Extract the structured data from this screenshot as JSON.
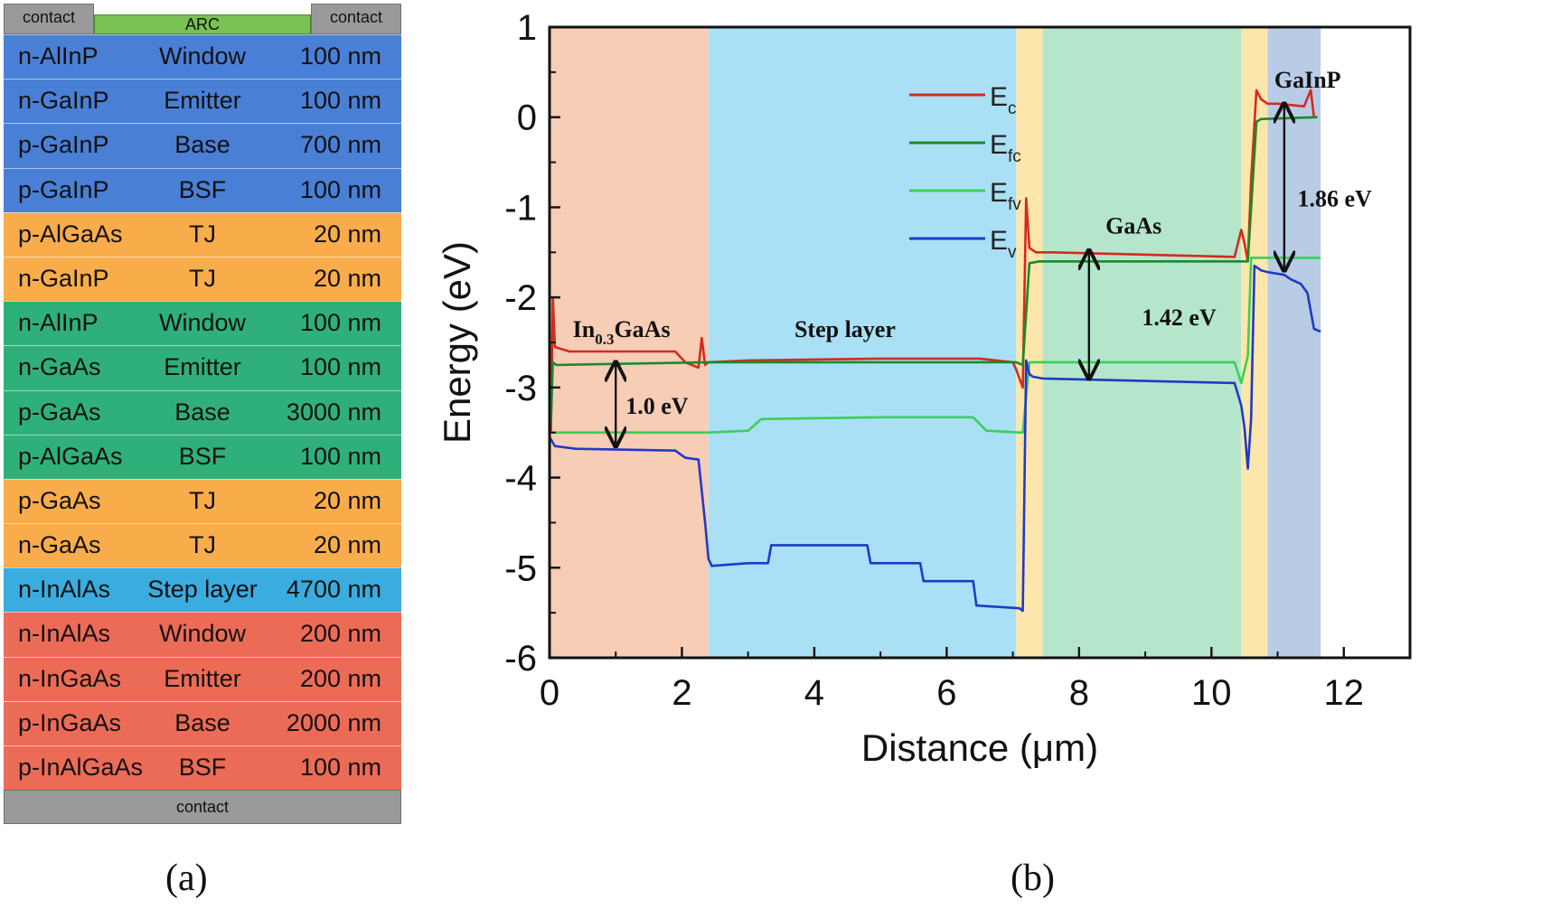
{
  "figure_a": {
    "caption": "(a)",
    "top_contact_left": "contact",
    "top_arc": "ARC",
    "top_contact_right": "contact",
    "bottom_contact": "contact",
    "layers": [
      {
        "material": "n-AlInP",
        "function": "Window",
        "thickness": "100 nm",
        "color": "#4a7fd6"
      },
      {
        "material": "n-GaInP",
        "function": "Emitter",
        "thickness": "100 nm",
        "color": "#4a7fd6"
      },
      {
        "material": "p-GaInP",
        "function": "Base",
        "thickness": "700 nm",
        "color": "#4a7fd6"
      },
      {
        "material": "p-GaInP",
        "function": "BSF",
        "thickness": "100 nm",
        "color": "#4a7fd6"
      },
      {
        "material": "p-AlGaAs",
        "function": "TJ",
        "thickness": "20 nm",
        "color": "#f9ac4a"
      },
      {
        "material": "n-GaInP",
        "function": "TJ",
        "thickness": "20 nm",
        "color": "#f9ac4a"
      },
      {
        "material": "n-AlInP",
        "function": "Window",
        "thickness": "100 nm",
        "color": "#2fb07a"
      },
      {
        "material": "n-GaAs",
        "function": "Emitter",
        "thickness": "100 nm",
        "color": "#2fb07a"
      },
      {
        "material": "p-GaAs",
        "function": "Base",
        "thickness": "3000 nm",
        "color": "#2fb07a"
      },
      {
        "material": "p-AlGaAs",
        "function": "BSF",
        "thickness": "100 nm",
        "color": "#2fb07a"
      },
      {
        "material": "p-GaAs",
        "function": "TJ",
        "thickness": "20 nm",
        "color": "#f9ac4a"
      },
      {
        "material": "n-GaAs",
        "function": "TJ",
        "thickness": "20 nm",
        "color": "#f9ac4a"
      },
      {
        "material": "n-InAlAs",
        "function": "Step layer",
        "thickness": "4700 nm",
        "color": "#3aacdf"
      },
      {
        "material": "n-InAlAs",
        "function": "Window",
        "thickness": "200 nm",
        "color": "#ec6b57"
      },
      {
        "material": "n-InGaAs",
        "function": "Emitter",
        "thickness": "200 nm",
        "color": "#ec6b57"
      },
      {
        "material": "p-InGaAs",
        "function": "Base",
        "thickness": "2000 nm",
        "color": "#ec6b57"
      },
      {
        "material": "p-InAlGaAs",
        "function": "BSF",
        "thickness": "100 nm",
        "color": "#ec6b57"
      }
    ]
  },
  "figure_b": {
    "caption": "(b)",
    "chart_data": {
      "type": "line",
      "xlabel": "Distance (μm)",
      "ylabel": "Energy (eV)",
      "xlim": [
        0,
        13
      ],
      "ylim": [
        -6,
        1
      ],
      "xticks": [
        "0",
        "2",
        "4",
        "6",
        "8",
        "10",
        "12"
      ],
      "yticks": [
        "1",
        "0",
        "-1",
        "-2",
        "-3",
        "-4",
        "-5",
        "-6"
      ],
      "regions": [
        {
          "name": "In0.3GaAs",
          "label_main": "In",
          "label_sub": "0.3",
          "label_rest": "GaAs",
          "x": [
            0,
            2.4
          ],
          "color": "#f7cdb6"
        },
        {
          "name": "Step layer",
          "label_main": "Step layer",
          "x": [
            2.4,
            7.05
          ],
          "color": "#a9e0f5"
        },
        {
          "name": "TJ",
          "x": [
            7.05,
            7.45
          ],
          "color": "#fde6ab"
        },
        {
          "name": "GaAs",
          "label_main": "GaAs",
          "x": [
            7.45,
            10.45
          ],
          "color": "#b5e6cc"
        },
        {
          "name": "TJ",
          "x": [
            10.45,
            10.85
          ],
          "color": "#fde6ab"
        },
        {
          "name": "GaInP",
          "label_main": "GaInP",
          "x": [
            10.85,
            11.65
          ],
          "color": "#b8cce6"
        }
      ],
      "series": [
        {
          "name": "E",
          "sub": "c",
          "color": "#d42a1e",
          "x": [
            0.02,
            0.05,
            0.08,
            0.3,
            1.9,
            2.05,
            2.25,
            2.3,
            2.35,
            2.4,
            3.0,
            5.0,
            6.5,
            7.0,
            7.05,
            7.15,
            7.2,
            7.25,
            7.35,
            7.6,
            10.35,
            10.45,
            10.5,
            10.55,
            10.6,
            10.68,
            10.75,
            10.85,
            11.0,
            11.4,
            11.5,
            11.55,
            11.6
          ],
          "values": [
            -3.5,
            -2.0,
            -2.55,
            -2.6,
            -2.6,
            -2.72,
            -2.78,
            -2.45,
            -2.75,
            -2.72,
            -2.7,
            -2.68,
            -2.68,
            -2.72,
            -2.8,
            -3.0,
            -0.9,
            -1.45,
            -1.5,
            -1.5,
            -1.55,
            -1.25,
            -1.4,
            -1.6,
            -0.7,
            0.3,
            0.2,
            0.15,
            0.15,
            0.12,
            0.3,
            0.0,
            0.0
          ]
        },
        {
          "name": "E",
          "sub": "fc",
          "color": "#1a8a2a",
          "x": [
            0.02,
            0.05,
            0.1,
            2.4,
            7.05,
            7.15,
            7.25,
            7.4,
            10.45,
            10.55,
            10.68,
            10.75,
            11.6
          ],
          "values": [
            -3.4,
            -2.72,
            -2.75,
            -2.72,
            -2.72,
            -2.75,
            -1.62,
            -1.6,
            -1.6,
            -1.6,
            -0.05,
            -0.02,
            0.0
          ]
        },
        {
          "name": "E",
          "sub": "fv",
          "color": "#39d056",
          "x": [
            0.02,
            0.06,
            2.4,
            3.0,
            3.2,
            5.0,
            6.4,
            6.6,
            7.1,
            7.15,
            7.25,
            10.35,
            10.45,
            10.55,
            10.6,
            11.65
          ],
          "values": [
            -3.5,
            -3.5,
            -3.5,
            -3.48,
            -3.35,
            -3.33,
            -3.33,
            -3.48,
            -3.5,
            -3.5,
            -2.72,
            -2.72,
            -2.95,
            -2.65,
            -1.56,
            -1.56
          ]
        },
        {
          "name": "E",
          "sub": "v",
          "color": "#1f3bc4",
          "x": [
            0.0,
            0.08,
            0.4,
            1.9,
            2.05,
            2.25,
            2.35,
            2.4,
            2.45,
            3.0,
            3.3,
            3.35,
            4.8,
            4.85,
            5.6,
            5.65,
            6.4,
            6.45,
            7.1,
            7.15,
            7.2,
            7.25,
            7.3,
            7.45,
            10.35,
            10.45,
            10.5,
            10.55,
            10.6,
            10.65,
            10.75,
            10.85,
            11.1,
            11.2,
            11.35,
            11.45,
            11.55,
            11.65
          ],
          "values": [
            -3.55,
            -3.65,
            -3.68,
            -3.7,
            -3.78,
            -3.8,
            -4.5,
            -4.9,
            -4.98,
            -4.95,
            -4.95,
            -4.75,
            -4.75,
            -4.95,
            -4.95,
            -5.15,
            -5.15,
            -5.42,
            -5.45,
            -5.48,
            -2.7,
            -2.85,
            -2.88,
            -2.9,
            -2.95,
            -3.2,
            -3.45,
            -3.9,
            -3.35,
            -1.65,
            -1.7,
            -1.72,
            -1.75,
            -1.8,
            -1.85,
            -1.95,
            -2.35,
            -2.38
          ]
        }
      ],
      "annotations": [
        {
          "text": "1.0 eV",
          "x": 1.0,
          "y_top": -2.72,
          "y_bottom": -3.65,
          "label_x": 1.15,
          "label_y": -3.2
        },
        {
          "text": "1.42 eV",
          "x": 8.15,
          "y_top": -1.48,
          "y_bottom": -2.9,
          "label_x": 8.95,
          "label_y": -2.22
        },
        {
          "text": "1.86 eV",
          "x": 11.1,
          "y_top": 0.15,
          "y_bottom": -1.7,
          "label_x": 11.3,
          "label_y": -0.9
        }
      ],
      "legend_placement": "upper-left-inside",
      "grid": false
    }
  }
}
